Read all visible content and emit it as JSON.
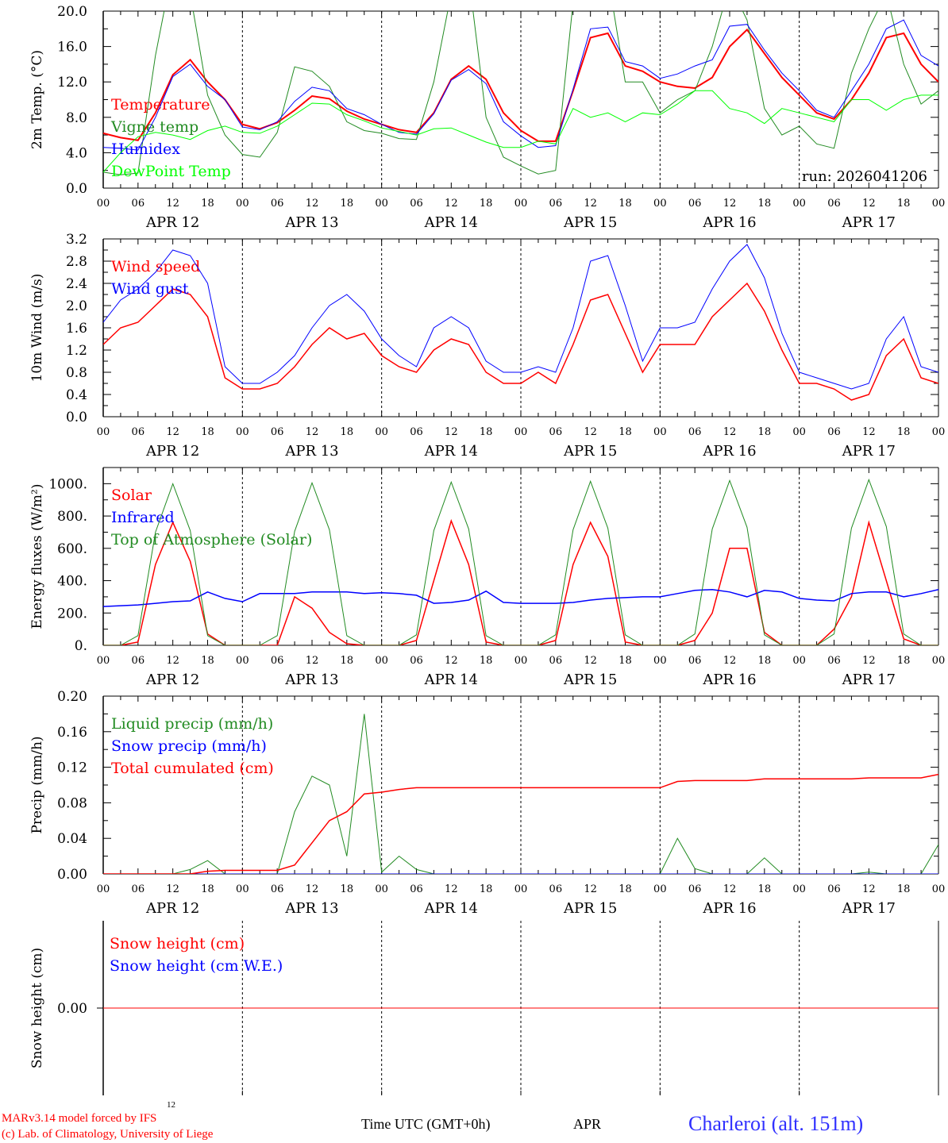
{
  "colors": {
    "red": "#ff0000",
    "blue": "#0000ff",
    "darkgreen": "#228b22",
    "lightgreen": "#00ff00",
    "black": "#000000"
  },
  "hour_labels": [
    "00",
    "06",
    "12",
    "18"
  ],
  "final_hour_label": "00",
  "day_labels": [
    "APR 12",
    "APR 13",
    "APR 14",
    "APR 15",
    "APR 16",
    "APR 17"
  ],
  "run_label": "run: 2026041206",
  "footer": {
    "model_line": "MARv3.14 model forced by IFS",
    "copyright_line": "(c) Lab. of Climatology, University of Liege",
    "small_label": "12",
    "time_axis_label": "Time UTC (GMT+0h)",
    "month_label": "APR",
    "station": "Charleroi (alt. 151m)"
  },
  "chart_data": [
    {
      "type": "line",
      "id": "temperature",
      "ylabel": "2m Temp. (°C)",
      "ylim": [
        0,
        20
      ],
      "yticks": [
        "0.0",
        "4.0",
        "8.0",
        "12.0",
        "16.0",
        "20.0"
      ],
      "ytick_values": [
        0,
        4,
        8,
        12,
        16,
        20
      ],
      "x_hours_step": 3,
      "series": [
        {
          "name": "Temperature",
          "color": "#ff0000",
          "width": 2,
          "values": [
            6.2,
            5.7,
            5.4,
            8.5,
            12.8,
            14.5,
            12,
            10,
            7.2,
            6.7,
            7.4,
            8.8,
            10.4,
            10.1,
            8.7,
            7.8,
            7.2,
            6.6,
            6.3,
            8.5,
            12.3,
            13.8,
            12.3,
            8.5,
            6.5,
            5.3,
            5.3,
            11,
            17,
            17.5,
            13.8,
            13.2,
            12,
            11.5,
            11.3,
            12.5,
            16,
            17.9,
            15.2,
            12.5,
            10.5,
            8.5,
            7.8,
            10,
            13,
            17,
            17.5,
            14,
            12
          ]
        },
        {
          "name": "Vigne temp",
          "color": "#228b22",
          "width": 1,
          "values": [
            1.8,
            1.5,
            1.7,
            15,
            25,
            22,
            10.5,
            6,
            3.8,
            3.5,
            6.3,
            13.7,
            13.2,
            11.5,
            7.5,
            6.5,
            6.2,
            5.6,
            5.5,
            12,
            22,
            24,
            8,
            3.5,
            2.5,
            1.6,
            2,
            21,
            25,
            24,
            12,
            12,
            8.5,
            10,
            11,
            16,
            23,
            19,
            9,
            6,
            7,
            5,
            4.5,
            13,
            18,
            22,
            14,
            9.5,
            11
          ]
        },
        {
          "name": "Humidex",
          "color": "#0000ff",
          "width": 1,
          "values": [
            4.6,
            4.5,
            4.3,
            8,
            12.6,
            14,
            11.5,
            10,
            6.9,
            6.6,
            7.5,
            9.8,
            11.4,
            11,
            9,
            8.3,
            7.2,
            6.3,
            6.1,
            8.4,
            12.2,
            13.4,
            11.8,
            7.5,
            5.9,
            4.6,
            4.8,
            11.2,
            18,
            18.2,
            14.3,
            13.8,
            12.4,
            12.9,
            13.8,
            14.5,
            18.3,
            18.5,
            15.6,
            13,
            11,
            8.8,
            8,
            11,
            14,
            18,
            19,
            15,
            13.8
          ]
        },
        {
          "name": "DewPoint Temp",
          "color": "#00ff00",
          "width": 1,
          "values": [
            1.8,
            4,
            5.8,
            6.3,
            6,
            5.5,
            6.5,
            7,
            6.3,
            6.2,
            7,
            8.3,
            9.6,
            9.5,
            8.3,
            7.6,
            6.8,
            6.4,
            6,
            6.7,
            6.8,
            6,
            5.2,
            4.6,
            4.6,
            5.3,
            5,
            9,
            8,
            8.5,
            7.5,
            8.5,
            8.3,
            9.5,
            11,
            11,
            9,
            8.5,
            7.3,
            9,
            8.5,
            8,
            7.5,
            10,
            10,
            8.8,
            10,
            10.5,
            10.5
          ]
        }
      ]
    },
    {
      "type": "line",
      "id": "wind",
      "ylabel": "10m Wind (m/s)",
      "ylim": [
        0,
        3.2
      ],
      "yticks": [
        "0.0",
        "0.4",
        "0.8",
        "1.2",
        "1.6",
        "2.0",
        "2.4",
        "2.8",
        "3.2"
      ],
      "ytick_values": [
        0,
        0.4,
        0.8,
        1.2,
        1.6,
        2.0,
        2.4,
        2.8,
        3.2
      ],
      "x_hours_step": 3,
      "series": [
        {
          "name": "Wind speed",
          "color": "#ff0000",
          "width": 1.5,
          "values": [
            1.3,
            1.6,
            1.7,
            2.0,
            2.3,
            2.2,
            1.8,
            0.7,
            0.5,
            0.5,
            0.6,
            0.9,
            1.3,
            1.6,
            1.4,
            1.5,
            1.1,
            0.9,
            0.8,
            1.2,
            1.4,
            1.3,
            0.8,
            0.6,
            0.6,
            0.8,
            0.6,
            1.3,
            2.1,
            2.2,
            1.5,
            0.8,
            1.3,
            1.3,
            1.3,
            1.8,
            2.1,
            2.4,
            1.9,
            1.2,
            0.6,
            0.6,
            0.5,
            0.3,
            0.4,
            1.1,
            1.4,
            0.7,
            0.6
          ]
        },
        {
          "name": "Wind gust",
          "color": "#0000ff",
          "width": 1,
          "values": [
            1.7,
            2.1,
            2.3,
            2.6,
            3.0,
            2.9,
            2.4,
            0.9,
            0.6,
            0.6,
            0.8,
            1.1,
            1.6,
            2.0,
            2.2,
            1.9,
            1.4,
            1.1,
            0.9,
            1.6,
            1.8,
            1.6,
            1.0,
            0.8,
            0.8,
            0.9,
            0.8,
            1.6,
            2.8,
            2.9,
            2.0,
            1.0,
            1.6,
            1.6,
            1.7,
            2.3,
            2.8,
            3.1,
            2.5,
            1.5,
            0.8,
            0.7,
            0.6,
            0.5,
            0.6,
            1.4,
            1.8,
            0.9,
            0.8
          ]
        }
      ]
    },
    {
      "type": "line",
      "id": "energy",
      "ylabel": "Energy fluxes (W/m²)",
      "ylim": [
        0,
        1100
      ],
      "yticks": [
        "0.",
        "200.",
        "400.",
        "600.",
        "800.",
        "1000."
      ],
      "ytick_values": [
        0,
        200,
        400,
        600,
        800,
        1000
      ],
      "x_hours_step": 3,
      "series": [
        {
          "name": "Solar",
          "color": "#ff0000",
          "width": 1.5,
          "values": [
            0,
            0,
            20,
            500,
            760,
            520,
            70,
            0,
            0,
            0,
            0,
            300,
            230,
            80,
            10,
            0,
            0,
            0,
            30,
            400,
            770,
            500,
            20,
            0,
            0,
            0,
            30,
            500,
            760,
            550,
            20,
            0,
            0,
            0,
            30,
            200,
            600,
            600,
            80,
            0,
            0,
            0,
            100,
            300,
            760,
            400,
            40,
            0,
            0
          ]
        },
        {
          "name": "Infrared",
          "color": "#0000ff",
          "width": 1.5,
          "values": [
            240,
            245,
            250,
            260,
            270,
            275,
            330,
            290,
            270,
            320,
            320,
            320,
            330,
            330,
            330,
            320,
            325,
            320,
            310,
            260,
            265,
            280,
            335,
            265,
            260,
            260,
            260,
            265,
            280,
            290,
            295,
            300,
            300,
            320,
            340,
            345,
            330,
            300,
            340,
            330,
            290,
            280,
            275,
            320,
            330,
            330,
            300,
            320,
            345
          ]
        },
        {
          "name": "Top of Atmosphere (Solar)",
          "color": "#228b22",
          "width": 1,
          "values": [
            0,
            0,
            60,
            700,
            1000,
            710,
            60,
            0,
            0,
            0,
            60,
            705,
            1005,
            715,
            60,
            0,
            0,
            0,
            65,
            710,
            1010,
            720,
            60,
            0,
            0,
            0,
            65,
            715,
            1015,
            725,
            65,
            0,
            0,
            0,
            70,
            720,
            1020,
            730,
            65,
            0,
            0,
            0,
            70,
            725,
            1025,
            735,
            70,
            0,
            0
          ]
        }
      ]
    },
    {
      "type": "line",
      "id": "precip",
      "ylabel": "Precip (mm/h)",
      "ylim": [
        0,
        0.2
      ],
      "yticks": [
        "0.00",
        "0.04",
        "0.08",
        "0.12",
        "0.16",
        "0.20"
      ],
      "ytick_values": [
        0,
        0.04,
        0.08,
        0.12,
        0.16,
        0.2
      ],
      "x_hours_step": 3,
      "series": [
        {
          "name": "Liquid precip (mm/h)",
          "color": "#228b22",
          "width": 1,
          "values": [
            0,
            0,
            0,
            0,
            0,
            0.005,
            0.015,
            0,
            0,
            0,
            0,
            0.07,
            0.11,
            0.1,
            0.02,
            0.18,
            0.002,
            0.02,
            0.005,
            0,
            0,
            0,
            0,
            0,
            0,
            0,
            0,
            0,
            0,
            0,
            0,
            0,
            0,
            0.04,
            0.006,
            0,
            0,
            0,
            0.018,
            0,
            0,
            0,
            0,
            0,
            0.002,
            0,
            0,
            0,
            0.033
          ]
        },
        {
          "name": "Snow precip (mm/h)",
          "color": "#0000ff",
          "width": 1,
          "values": [
            0,
            0,
            0,
            0,
            0,
            0,
            0,
            0,
            0,
            0,
            0,
            0,
            0,
            0,
            0,
            0,
            0,
            0,
            0,
            0,
            0,
            0,
            0,
            0,
            0,
            0,
            0,
            0,
            0,
            0,
            0,
            0,
            0,
            0,
            0,
            0,
            0,
            0,
            0,
            0,
            0,
            0,
            0,
            0,
            0,
            0,
            0,
            0,
            0
          ]
        },
        {
          "name": "Total cumulated (cm)",
          "color": "#ff0000",
          "width": 1.5,
          "values": [
            0,
            0,
            0,
            0,
            0,
            0,
            0.003,
            0.004,
            0.004,
            0.004,
            0.004,
            0.01,
            0.035,
            0.06,
            0.07,
            0.09,
            0.092,
            0.095,
            0.097,
            0.097,
            0.097,
            0.097,
            0.097,
            0.097,
            0.097,
            0.097,
            0.097,
            0.097,
            0.097,
            0.097,
            0.097,
            0.097,
            0.097,
            0.104,
            0.105,
            0.105,
            0.105,
            0.105,
            0.107,
            0.107,
            0.107,
            0.107,
            0.107,
            0.107,
            0.108,
            0.108,
            0.108,
            0.108,
            0.112
          ]
        }
      ]
    },
    {
      "type": "line",
      "id": "snow",
      "ylabel": "Snow height (cm)",
      "ylim": [
        -1,
        1
      ],
      "yticks": [
        "0.00"
      ],
      "ytick_values": [
        0
      ],
      "x_hours_step": 3,
      "series": [
        {
          "name": "Snow height (cm)",
          "color": "#ff0000",
          "width": 1,
          "values": [
            0,
            0,
            0,
            0,
            0,
            0,
            0,
            0,
            0,
            0,
            0,
            0,
            0,
            0,
            0,
            0,
            0,
            0,
            0,
            0,
            0,
            0,
            0,
            0,
            0,
            0,
            0,
            0,
            0,
            0,
            0,
            0,
            0,
            0,
            0,
            0,
            0,
            0,
            0,
            0,
            0,
            0,
            0,
            0,
            0,
            0,
            0,
            0,
            0
          ]
        },
        {
          "name": "Snow height (cm W.E.)",
          "color": "#0000ff",
          "width": 0,
          "values": []
        }
      ]
    }
  ]
}
